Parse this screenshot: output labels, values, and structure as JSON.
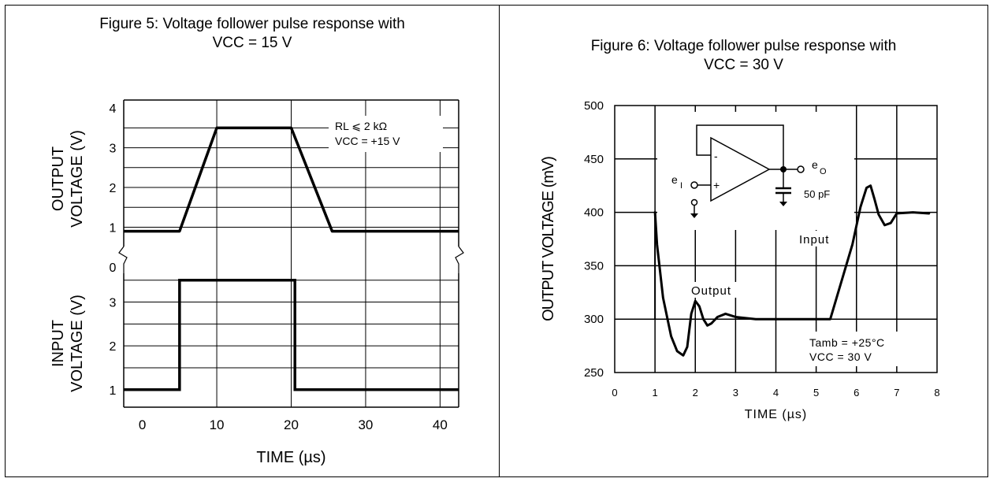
{
  "chart_data": [
    {
      "type": "line",
      "title_line1": "Figure 5: Voltage follower pulse response with",
      "title_line2": "VCC = 15 V",
      "xlabel": "TIME (µs)",
      "x_ticks": [
        0,
        10,
        20,
        30,
        40
      ],
      "xlim": [
        -2.5,
        42.5
      ],
      "output_panel": {
        "ylabel_line1": "OUTPUT",
        "ylabel_line2": "VOLTAGE (V)",
        "y_ticks": [
          0,
          1,
          2,
          3,
          4
        ],
        "ylim": [
          0,
          4.2
        ],
        "series": [
          {
            "x": [
              -2.5,
              5,
              10,
              20,
              25.5,
              42.5
            ],
            "y": [
              0.9,
              0.9,
              3.5,
              3.5,
              0.9,
              0.9
            ]
          }
        ],
        "annotation_line1": "RL ⩽ 2 kΩ",
        "annotation_line2": "VCC = +15 V"
      },
      "input_panel": {
        "ylabel_line1": "INPUT",
        "ylabel_line2": "VOLTAGE (V)",
        "y_ticks": [
          1,
          2,
          3
        ],
        "ylim": [
          0.6,
          3.8
        ],
        "series": [
          {
            "x": [
              -2.5,
              5,
              5,
              20.5,
              20.5,
              42.5
            ],
            "y": [
              1,
              1,
              3.5,
              3.5,
              1,
              1
            ]
          }
        ]
      },
      "grid": true
    },
    {
      "type": "line",
      "title_line1": "Figure 6: Voltage follower pulse response with",
      "title_line2": "VCC = 30 V",
      "xlabel": "TIME (µs)",
      "ylabel": "OUTPUT VOLTAGE (mV)",
      "x_ticks": [
        0,
        1,
        2,
        3,
        4,
        5,
        6,
        7,
        8
      ],
      "y_ticks": [
        250,
        300,
        350,
        400,
        450,
        500
      ],
      "xlim": [
        0,
        8
      ],
      "ylim": [
        250,
        500
      ],
      "series": [
        {
          "name": "Output",
          "x": [
            1.0,
            1.05,
            1.2,
            1.4,
            1.55,
            1.7,
            1.8,
            1.9,
            2.0,
            2.1,
            2.2,
            2.3,
            2.4,
            2.55,
            2.75,
            3.0,
            3.5,
            4.0
          ],
          "y": [
            400,
            370,
            320,
            284,
            270,
            266,
            274,
            305,
            317,
            312,
            300,
            294,
            296,
            302,
            305,
            302,
            300,
            300
          ]
        },
        {
          "name": "Input",
          "x": [
            4.0,
            5.0,
            5.35,
            5.9,
            6.1,
            6.25,
            6.35,
            6.45,
            6.55,
            6.7,
            6.85,
            7.0,
            7.4,
            7.8
          ],
          "y": [
            300,
            300,
            300,
            370,
            405,
            423,
            425,
            412,
            398,
            388,
            390,
            399,
            400,
            399
          ]
        }
      ],
      "input_step": {
        "x": 1.0,
        "from": 300,
        "to": 400
      },
      "annotation_line1": "Tamb = +25°C",
      "annotation_line2": "VCC = 30 V",
      "label_output": "Output",
      "label_input": "Input",
      "circuit": {
        "minus": "-",
        "plus": "+",
        "input_label": "e",
        "input_sub": "I",
        "output_label": "e",
        "output_sub": "O",
        "cap_label": "50 pF"
      },
      "grid": true
    }
  ]
}
